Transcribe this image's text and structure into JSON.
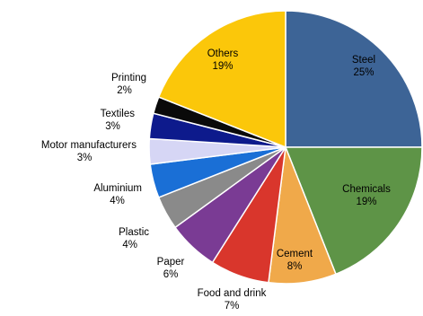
{
  "chart_data": {
    "type": "pie",
    "slices": [
      {
        "label": "Steel",
        "value": 25,
        "value_label": "25%",
        "color": "#3d6496"
      },
      {
        "label": "Chemicals",
        "value": 19,
        "value_label": "19%",
        "color": "#5e9447"
      },
      {
        "label": "Cement",
        "value": 8,
        "value_label": "8%",
        "color": "#f0a94a"
      },
      {
        "label": "Food and drink",
        "value": 7,
        "value_label": "7%",
        "color": "#d9362c"
      },
      {
        "label": "Paper",
        "value": 6,
        "value_label": "6%",
        "color": "#7a3b94"
      },
      {
        "label": "Plastic",
        "value": 4,
        "value_label": "4%",
        "color": "#8a8a8a"
      },
      {
        "label": "Aluminium",
        "value": 4,
        "value_label": "4%",
        "color": "#1a6fd6"
      },
      {
        "label": "Motor manufacturers",
        "value": 3,
        "value_label": "3%",
        "color": "#d6d6f5"
      },
      {
        "label": "Textiles",
        "value": 3,
        "value_label": "3%",
        "color": "#0d1a8c"
      },
      {
        "label": "Printing",
        "value": 2,
        "value_label": "2%",
        "color": "#0a0a0a"
      },
      {
        "label": "Others",
        "value": 19,
        "value_label": "19%",
        "color": "#fbc70a"
      }
    ],
    "start_angle": "12 o'clock",
    "direction": "clockwise",
    "legend": "none"
  }
}
